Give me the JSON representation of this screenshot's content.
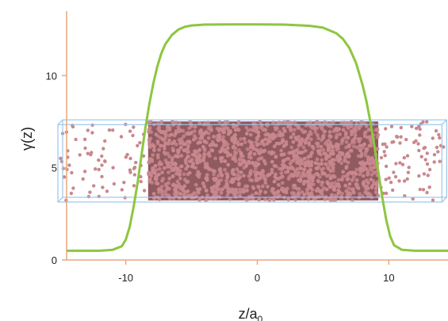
{
  "chart_data": {
    "type": "line",
    "title": "",
    "xlabel": "z/a",
    "xlabel_subscript": "0",
    "ylabel": "γ(z)",
    "xlim": [
      -14.5,
      14.5
    ],
    "ylim": [
      0,
      13.5
    ],
    "xticks": [
      "-10",
      "0",
      "10"
    ],
    "xtick_values": [
      -10,
      0,
      10
    ],
    "yticks": [
      "0",
      "5",
      "10"
    ],
    "ytick_values": [
      0,
      5,
      10
    ],
    "grid": false,
    "axis_color": "#e8a77f",
    "series": [
      {
        "color": "#8dc63f",
        "x": [
          -14.5,
          -12.0,
          -11.0,
          -10.3,
          -10.0,
          -9.7,
          -9.4,
          -9.1,
          -8.8,
          -8.5,
          -8.2,
          -7.9,
          -7.6,
          -7.3,
          -7.0,
          -6.5,
          -6.0,
          -5.5,
          -5.0,
          -4.0,
          -2.0,
          0.0,
          2.0,
          4.0,
          5.0,
          6.0,
          6.5,
          7.0,
          7.5,
          8.0,
          8.3,
          8.6,
          8.9,
          9.2,
          9.5,
          9.8,
          10.1,
          10.4,
          11.0,
          12.0,
          14.5
        ],
        "y": [
          0.5,
          0.5,
          0.55,
          0.75,
          1.1,
          1.8,
          2.9,
          4.2,
          5.7,
          7.2,
          8.5,
          9.6,
          10.5,
          11.2,
          11.7,
          12.2,
          12.5,
          12.65,
          12.72,
          12.77,
          12.78,
          12.78,
          12.77,
          12.7,
          12.6,
          12.3,
          12.0,
          11.5,
          10.7,
          9.5,
          8.6,
          7.5,
          6.2,
          4.8,
          3.4,
          2.2,
          1.3,
          0.8,
          0.55,
          0.5,
          0.5
        ]
      }
    ]
  },
  "inset": {
    "description_free": true,
    "box_color": "#9cc6e8",
    "particle_color": "#c9888d",
    "dense_region_x": [
      -8.3,
      9.2
    ],
    "box_x": [
      -14.8,
      14.4
    ],
    "box_y": [
      3.4,
      7.6
    ]
  }
}
